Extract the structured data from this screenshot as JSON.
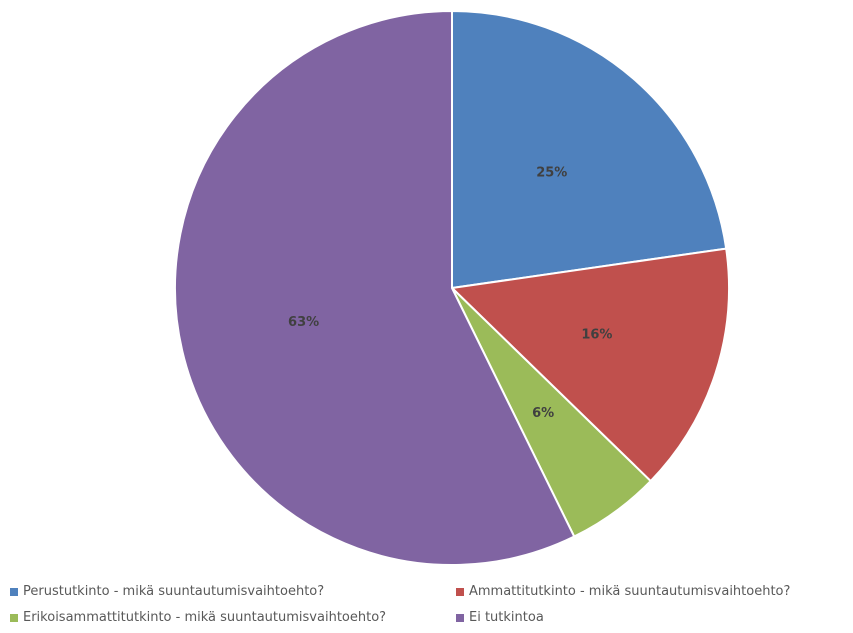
{
  "chart_data": {
    "type": "pie",
    "categories": [
      "Perustutkinto - mikä suuntautumisvaihtoehto?",
      "Ammattitutkinto - mikä suuntautumisvaihtoehto?",
      "Erikoisammattitutkinto - mikä suuntautumisvaihtoehto?",
      "Ei tutkintoa"
    ],
    "values": [
      25,
      16,
      6,
      63
    ],
    "labels": [
      "25%",
      "16%",
      "6%",
      "63%"
    ],
    "colors": [
      "#4f81bd",
      "#c0504d",
      "#9bbb59",
      "#8064a2"
    ],
    "legend_position": "bottom"
  }
}
